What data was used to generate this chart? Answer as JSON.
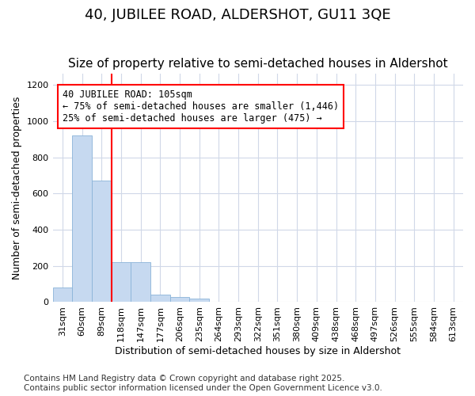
{
  "title": "40, JUBILEE ROAD, ALDERSHOT, GU11 3QE",
  "subtitle": "Size of property relative to semi-detached houses in Aldershot",
  "xlabel": "Distribution of semi-detached houses by size in Aldershot",
  "ylabel": "Number of semi-detached properties",
  "property_label": "40 JUBILEE ROAD: 105sqm",
  "pct_smaller": 75,
  "pct_smaller_count": "1,446",
  "pct_larger": 25,
  "pct_larger_count": "475",
  "bin_labels": [
    "31sqm",
    "60sqm",
    "89sqm",
    "118sqm",
    "147sqm",
    "177sqm",
    "206sqm",
    "235sqm",
    "264sqm",
    "293sqm",
    "322sqm",
    "351sqm",
    "380sqm",
    "409sqm",
    "438sqm",
    "468sqm",
    "497sqm",
    "526sqm",
    "555sqm",
    "584sqm",
    "613sqm"
  ],
  "bar_heights": [
    80,
    920,
    670,
    220,
    220,
    40,
    30,
    20,
    0,
    0,
    0,
    0,
    0,
    0,
    0,
    0,
    0,
    0,
    0,
    0,
    0
  ],
  "bar_color": "#c6d9f0",
  "bar_edge_color": "#8ab4d8",
  "red_line_bin": 3,
  "ylim": [
    0,
    1260
  ],
  "yticks": [
    0,
    200,
    400,
    600,
    800,
    1000,
    1200
  ],
  "fig_bg": "#ffffff",
  "ax_bg": "#ffffff",
  "grid_color": "#d0d8e8",
  "title_fontsize": 13,
  "subtitle_fontsize": 11,
  "axis_label_fontsize": 9,
  "tick_fontsize": 8,
  "annotation_fontsize": 8.5,
  "footer_fontsize": 7.5,
  "footer": "Contains HM Land Registry data © Crown copyright and database right 2025.\nContains public sector information licensed under the Open Government Licence v3.0."
}
